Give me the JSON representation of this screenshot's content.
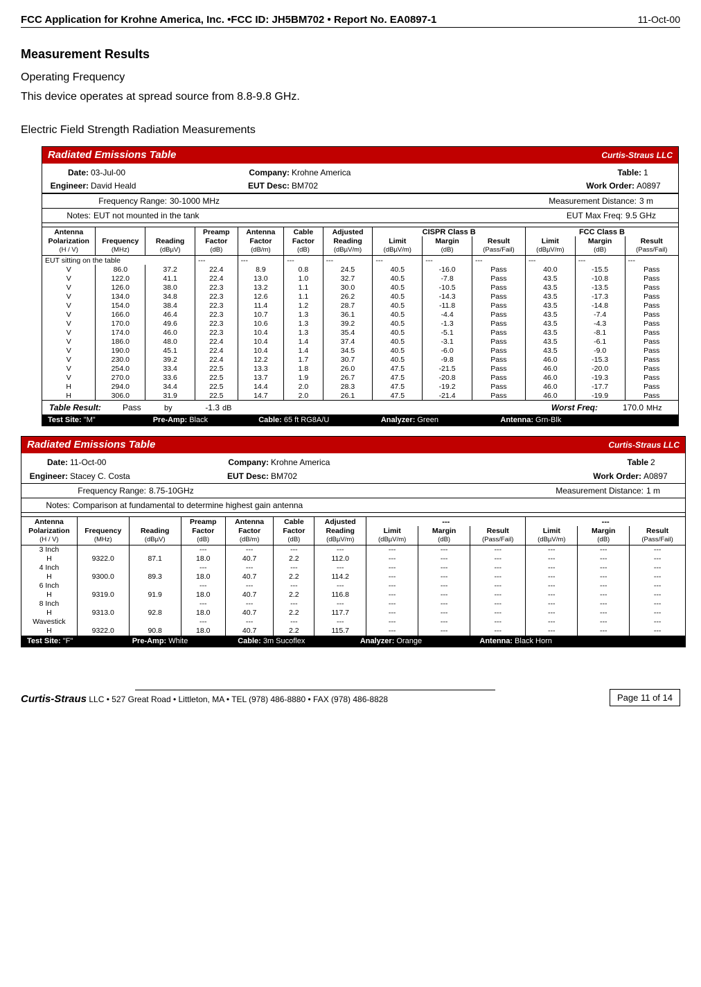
{
  "header": {
    "title": "FCC Application for Krohne America, Inc. •FCC ID: JH5BM702 • Report No. EA0897-1",
    "date": "11-Oct-00"
  },
  "section_title": "Measurement Results",
  "operating_heading": "Operating Frequency",
  "operating_text": "This device operates at spread source from   8.8-9.8 GHz.",
  "efs_heading": "Electric Field Strength Radiation Measurements",
  "table1": {
    "title": "Radiated Emissions Table",
    "company_brand": "Curtis-Straus LLC",
    "meta": {
      "date_label": "Date:",
      "date": "03-Jul-00",
      "company_label": "Company:",
      "company": "Krohne America",
      "table_label": "Table:",
      "table_no": "1",
      "engineer_label": "Engineer:",
      "engineer": "David Heald",
      "eut_label": "EUT Desc:",
      "eut": "BM702",
      "wo_label": "Work Order:",
      "wo": "A0897",
      "freq_label": "Frequency Range:",
      "freq": "30-1000 MHz",
      "mdist_label": "Measurement Distance:",
      "mdist": "3 m",
      "notes_label": "Notes:",
      "notes": "EUT not mounted in the tank",
      "maxfreq_label": "EUT Max Freq:",
      "maxfreq": "9.5 GHz"
    },
    "columns_top": {
      "antenna": "Antenna",
      "preamp": "Preamp",
      "antenna_f": "Antenna",
      "cable": "Cable",
      "adjusted": "Adjusted",
      "cispr": "CISPR Class B",
      "fcc": "FCC Class B"
    },
    "columns_mid": {
      "polarization": "Polarization",
      "frequency": "Frequency",
      "reading": "Reading",
      "factor": "Factor",
      "reading2": "Reading",
      "limit": "Limit",
      "margin": "Margin",
      "result": "Result"
    },
    "columns_units": {
      "hv": "(H / V)",
      "mhz": "(MHz)",
      "dbuv": "(dBµV)",
      "db": "(dB)",
      "dbm": "(dB/m)",
      "dbuvm": "(dBµV/m)",
      "passfail": "(Pass/Fail)"
    },
    "section_label": "EUT sitting on the table",
    "rows": [
      [
        "V",
        "86.0",
        "37.2",
        "22.4",
        "8.9",
        "0.8",
        "24.5",
        "40.5",
        "-16.0",
        "Pass",
        "40.0",
        "-15.5",
        "Pass"
      ],
      [
        "V",
        "122.0",
        "41.1",
        "22.4",
        "13.0",
        "1.0",
        "32.7",
        "40.5",
        "-7.8",
        "Pass",
        "43.5",
        "-10.8",
        "Pass"
      ],
      [
        "V",
        "126.0",
        "38.0",
        "22.3",
        "13.2",
        "1.1",
        "30.0",
        "40.5",
        "-10.5",
        "Pass",
        "43.5",
        "-13.5",
        "Pass"
      ],
      [
        "V",
        "134.0",
        "34.8",
        "22.3",
        "12.6",
        "1.1",
        "26.2",
        "40.5",
        "-14.3",
        "Pass",
        "43.5",
        "-17.3",
        "Pass"
      ],
      [
        "V",
        "154.0",
        "38.4",
        "22.3",
        "11.4",
        "1.2",
        "28.7",
        "40.5",
        "-11.8",
        "Pass",
        "43.5",
        "-14.8",
        "Pass"
      ],
      [
        "V",
        "166.0",
        "46.4",
        "22.3",
        "10.7",
        "1.3",
        "36.1",
        "40.5",
        "-4.4",
        "Pass",
        "43.5",
        "-7.4",
        "Pass"
      ],
      [
        "V",
        "170.0",
        "49.6",
        "22.3",
        "10.6",
        "1.3",
        "39.2",
        "40.5",
        "-1.3",
        "Pass",
        "43.5",
        "-4.3",
        "Pass"
      ],
      [
        "V",
        "174.0",
        "46.0",
        "22.3",
        "10.4",
        "1.3",
        "35.4",
        "40.5",
        "-5.1",
        "Pass",
        "43.5",
        "-8.1",
        "Pass"
      ],
      [
        "V",
        "186.0",
        "48.0",
        "22.4",
        "10.4",
        "1.4",
        "37.4",
        "40.5",
        "-3.1",
        "Pass",
        "43.5",
        "-6.1",
        "Pass"
      ],
      [
        "V",
        "190.0",
        "45.1",
        "22.4",
        "10.4",
        "1.4",
        "34.5",
        "40.5",
        "-6.0",
        "Pass",
        "43.5",
        "-9.0",
        "Pass"
      ],
      [
        "V",
        "230.0",
        "39.2",
        "22.4",
        "12.2",
        "1.7",
        "30.7",
        "40.5",
        "-9.8",
        "Pass",
        "46.0",
        "-15.3",
        "Pass"
      ],
      [
        "V",
        "254.0",
        "33.4",
        "22.5",
        "13.3",
        "1.8",
        "26.0",
        "47.5",
        "-21.5",
        "Pass",
        "46.0",
        "-20.0",
        "Pass"
      ],
      [
        "V",
        "270.0",
        "33.6",
        "22.5",
        "13.7",
        "1.9",
        "26.7",
        "47.5",
        "-20.8",
        "Pass",
        "46.0",
        "-19.3",
        "Pass"
      ],
      [
        "H",
        "294.0",
        "34.4",
        "22.5",
        "14.4",
        "2.0",
        "28.3",
        "47.5",
        "-19.2",
        "Pass",
        "46.0",
        "-17.7",
        "Pass"
      ],
      [
        "H",
        "306.0",
        "31.9",
        "22.5",
        "14.7",
        "2.0",
        "26.1",
        "47.5",
        "-21.4",
        "Pass",
        "46.0",
        "-19.9",
        "Pass"
      ]
    ],
    "result_row": {
      "label": "Table Result:",
      "result": "Pass",
      "by": "by",
      "by_val": "-1.3",
      "by_unit": "dB",
      "worst_label": "Worst Freq:",
      "worst": "170.0",
      "worst_unit": "MHz"
    },
    "footer": {
      "site_label": "Test Site:",
      "site": "\"M\"",
      "preamp_label": "Pre-Amp:",
      "preamp": "Black",
      "cable_label": "Cable:",
      "cable": "65 ft RG8A/U",
      "analyzer_label": "Analyzer:",
      "analyzer": "Green",
      "antenna_label": "Antenna:",
      "antenna": "Grn-Blk"
    }
  },
  "table2": {
    "title": "Radiated Emissions Table",
    "company_brand": "Curtis-Straus LLC",
    "meta": {
      "date_label": "Date:",
      "date": "11-Oct-00",
      "company_label": "Company:",
      "company": "Krohne America",
      "table_label": "Table",
      "table_no": "2",
      "engineer_label": "Engineer:",
      "engineer": "Stacey C. Costa",
      "eut_label": "EUT Desc:",
      "eut": "BM702",
      "wo_label": "Work Order:",
      "wo": "A0897",
      "freq_label": "Frequency Range:",
      "freq": "8.75-10GHz",
      "mdist_label": "Measurement Distance:",
      "mdist": "1 m",
      "notes_label": "Notes:",
      "notes": "Comparison at fundamental to determine highest gain antenna"
    },
    "columns_top": {
      "group1": "---",
      "group2": "---"
    },
    "rows": [
      [
        "3 Inch",
        "",
        "",
        "---",
        "---",
        "---",
        "---",
        "---",
        "---",
        "---",
        "---",
        "---",
        "---"
      ],
      [
        "H",
        "9322.0",
        "87.1",
        "18.0",
        "40.7",
        "2.2",
        "112.0",
        "---",
        "---",
        "---",
        "---",
        "---",
        "---"
      ],
      [
        "4 Inch",
        "",
        "",
        "---",
        "---",
        "---",
        "---",
        "---",
        "---",
        "---",
        "---",
        "---",
        "---"
      ],
      [
        "H",
        "9300.0",
        "89.3",
        "18.0",
        "40.7",
        "2.2",
        "114.2",
        "---",
        "---",
        "---",
        "---",
        "---",
        "---"
      ],
      [
        "6 Inch",
        "",
        "",
        "---",
        "---",
        "---",
        "---",
        "---",
        "---",
        "---",
        "---",
        "---",
        "---"
      ],
      [
        "H",
        "9319.0",
        "91.9",
        "18.0",
        "40.7",
        "2.2",
        "116.8",
        "---",
        "---",
        "---",
        "---",
        "---",
        "---"
      ],
      [
        "8 Inch",
        "",
        "",
        "---",
        "---",
        "---",
        "---",
        "---",
        "---",
        "---",
        "---",
        "---",
        "---"
      ],
      [
        "H",
        "9313.0",
        "92.8",
        "18.0",
        "40.7",
        "2.2",
        "117.7",
        "---",
        "---",
        "---",
        "---",
        "---",
        "---"
      ],
      [
        "Wavestick",
        "",
        "",
        "---",
        "---",
        "---",
        "---",
        "---",
        "---",
        "---",
        "---",
        "---",
        "---"
      ],
      [
        "H",
        "9322.0",
        "90.8",
        "18.0",
        "40.7",
        "2.2",
        "115.7",
        "---",
        "---",
        "---",
        "---",
        "---",
        "---"
      ]
    ],
    "footer": {
      "site_label": "Test Site:",
      "site": "\"F\"",
      "preamp_label": "Pre-Amp:",
      "preamp": "White",
      "cable_label": "Cable:",
      "cable": "3m Sucoflex",
      "analyzer_label": "Analyzer:",
      "analyzer": "Orange",
      "antenna_label": "Antenna:",
      "antenna": "Black Horn"
    }
  },
  "page_footer": {
    "brand": "Curtis-Straus",
    "text": " LLC • 527 Great Road • Littleton, MA • TEL (978) 486-8880 • FAX (978) 486-8828",
    "page": "Page 11 of 14"
  },
  "colors": {
    "header_red": "#c00000",
    "footer_black": "#000000"
  }
}
